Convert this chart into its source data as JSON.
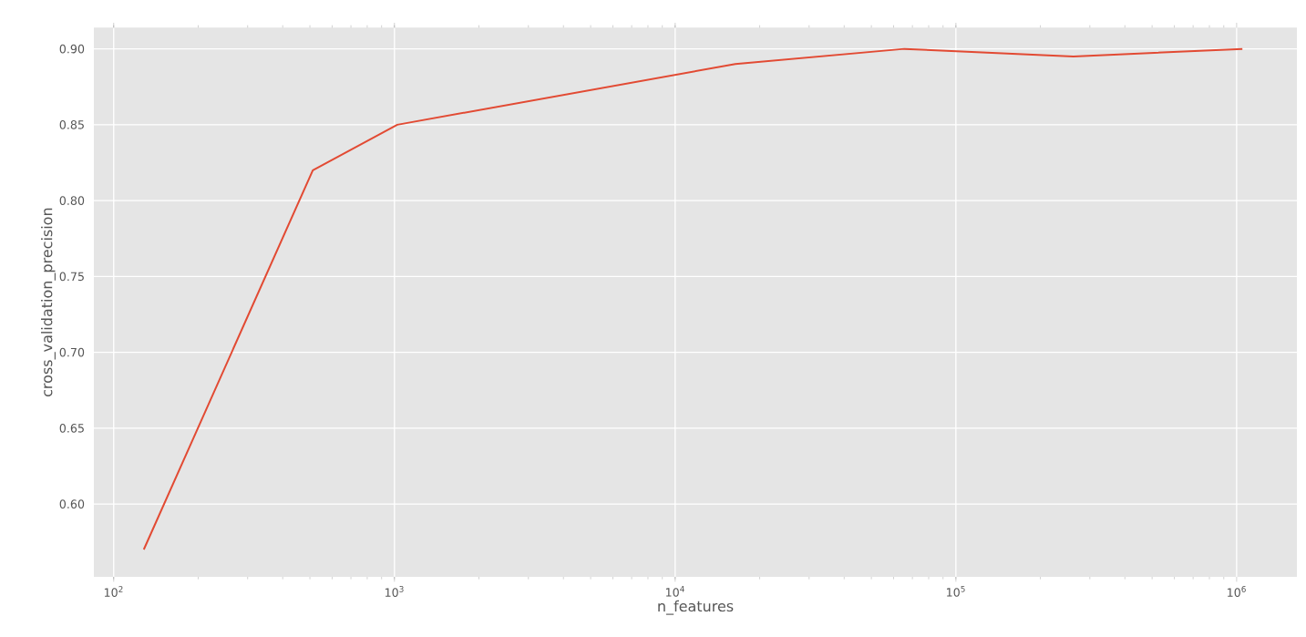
{
  "chart_data": {
    "type": "line",
    "xlabel": "n_features",
    "ylabel": "cross_validation_precision",
    "log": "x",
    "x": [
      128,
      512,
      1024,
      16384,
      65536,
      262144,
      1048576
    ],
    "series": [
      {
        "color": "#e24a33",
        "values": [
          0.57,
          0.82,
          0.85,
          0.89,
          0.9,
          0.895,
          0.9
        ]
      }
    ],
    "xlim": [
      85,
      1640000
    ],
    "ylim": [
      0.552,
      0.914
    ],
    "xticks": [
      {
        "value": 100,
        "label": "10$^{2}$"
      },
      {
        "value": 1000,
        "label": "10$^{3}$"
      },
      {
        "value": 10000,
        "label": "10$^{4}$"
      },
      {
        "value": 100000,
        "label": "10$^{5}$"
      },
      {
        "value": 1000000,
        "label": "10$^{6}$"
      }
    ],
    "yticks": [
      {
        "value": 0.6,
        "label": "0.60"
      },
      {
        "value": 0.65,
        "label": "0.65"
      },
      {
        "value": 0.7,
        "label": "0.70"
      },
      {
        "value": 0.75,
        "label": "0.75"
      },
      {
        "value": 0.8,
        "label": "0.80"
      },
      {
        "value": 0.85,
        "label": "0.85"
      },
      {
        "value": 0.9,
        "label": "0.90"
      }
    ],
    "grid": true
  }
}
